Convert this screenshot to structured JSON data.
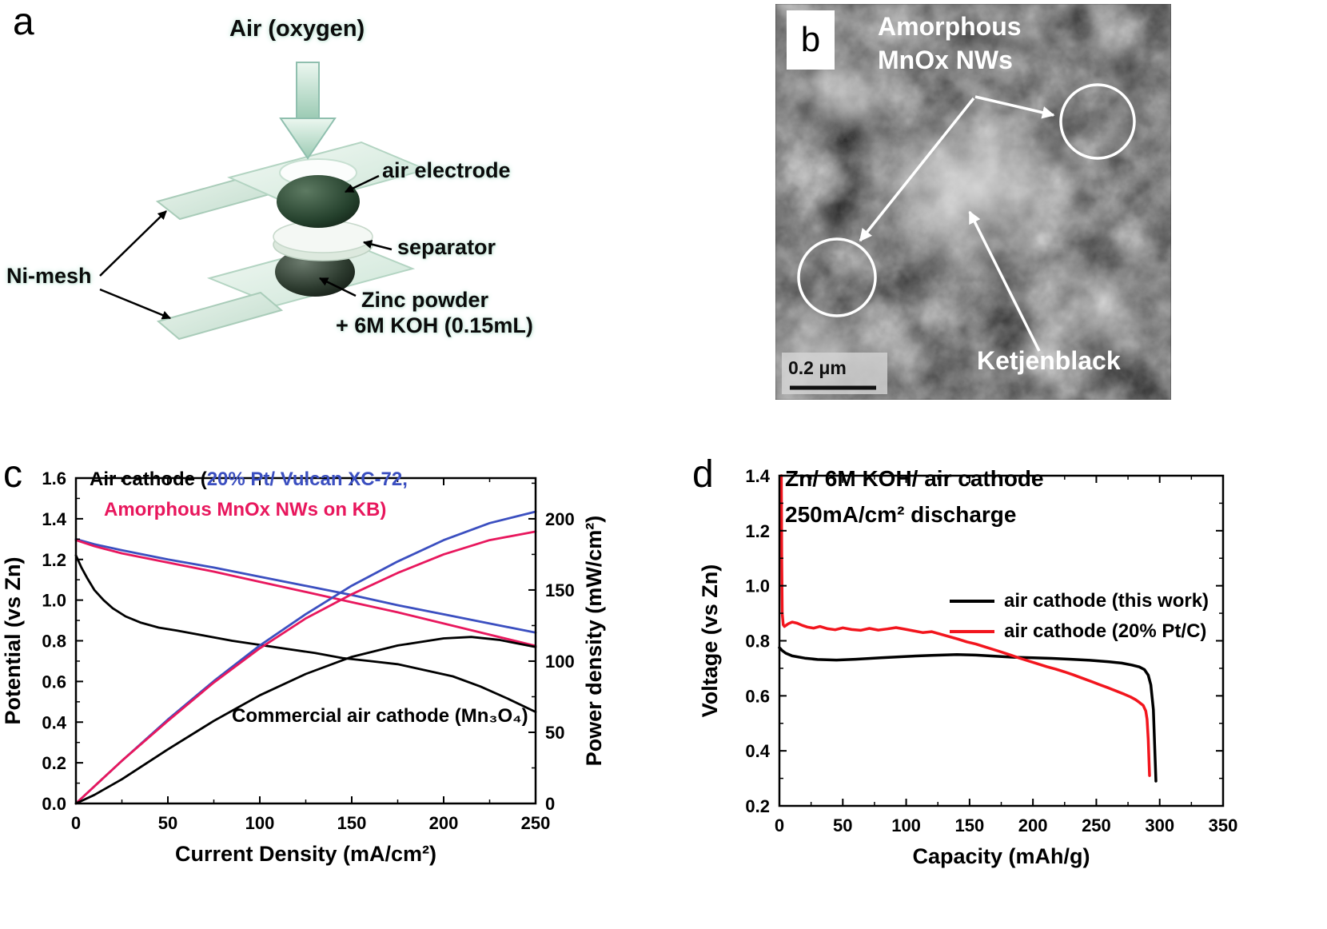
{
  "figure": {
    "panel_a_label": "a",
    "panel_b_label": "b",
    "panel_c_label": "c",
    "panel_d_label": "d"
  },
  "panel_a": {
    "air_oxygen": "Air (oxygen)",
    "air_electrode": "air electrode",
    "separator": "separator",
    "zinc_line1": "Zinc powder",
    "zinc_line2": "+ 6M KOH (0.15mL)",
    "ni_mesh": "Ni-mesh"
  },
  "panel_b": {
    "annotation_line1": "Amorphous",
    "annotation_line2": "MnOx NWs",
    "ketjenblack": "Ketjenblack",
    "scale_bar": "0.2 μm"
  },
  "panel_c": {
    "legend_black": "Air cathode (",
    "legend_blue": "20% Pt/ Vulcan XC-72,",
    "legend_red": "Amorphous MnOx NWs on KB)",
    "annotation": "Commercial air cathode (Mn₃O₄)",
    "colors": {
      "blue": "#3b4fc0",
      "red": "#e8175d",
      "black": "#000000"
    }
  },
  "panel_d": {
    "title_line1": "Zn/ 6M KOH/ air cathode",
    "title_line2": "250mA/cm² discharge",
    "legend": [
      {
        "label": "air cathode (this work)",
        "color": "#000000"
      },
      {
        "label": "air cathode (20% Pt/C)",
        "color": "#f2151d"
      }
    ]
  },
  "chart_data": [
    {
      "id": "chart-c",
      "type": "line",
      "xlabel": "Current Density (mA/cm²)",
      "ylabel_left": "Potential (vs Zn)",
      "ylabel_right": "Power density (mW/cm²)",
      "xlim": [
        0,
        250
      ],
      "ylim_left": [
        0,
        1.6
      ],
      "ylim_right": [
        0,
        228.6
      ],
      "xticks": [
        0,
        50,
        100,
        150,
        200,
        250
      ],
      "xminor": 25,
      "yticks_left": [
        "0.0",
        "0.2",
        "0.4",
        "0.6",
        "0.8",
        "1.0",
        "1.2",
        "1.4",
        "1.6"
      ],
      "yminor_left": 0.1,
      "yticks_right": [
        0,
        50,
        100,
        150,
        200
      ],
      "yminor_right": 25,
      "legend_position": "top-left",
      "grid": false,
      "series": [
        {
          "name": "commercial-Mn3O4-potential",
          "color": "#000000",
          "axis": "left",
          "width": 2.8,
          "x": [
            0,
            3,
            6,
            10,
            15,
            20,
            27,
            35,
            45,
            55,
            70,
            85,
            100,
            115,
            130,
            145,
            160,
            175,
            190,
            205,
            220,
            235,
            250
          ],
          "y": [
            1.22,
            1.16,
            1.11,
            1.05,
            1.0,
            0.96,
            0.92,
            0.89,
            0.865,
            0.85,
            0.825,
            0.8,
            0.78,
            0.76,
            0.74,
            0.715,
            0.7,
            0.685,
            0.655,
            0.625,
            0.575,
            0.515,
            0.45
          ]
        },
        {
          "name": "Pt-Vulcan-potential",
          "color": "#3b4fc0",
          "axis": "left",
          "width": 2.8,
          "x": [
            0,
            10,
            25,
            50,
            75,
            100,
            125,
            150,
            175,
            200,
            225,
            250
          ],
          "y": [
            1.3,
            1.275,
            1.245,
            1.2,
            1.16,
            1.115,
            1.07,
            1.025,
            0.975,
            0.93,
            0.885,
            0.84
          ]
        },
        {
          "name": "MnOx-NWs-potential",
          "color": "#e8175d",
          "axis": "left",
          "width": 2.8,
          "x": [
            0,
            10,
            25,
            50,
            75,
            100,
            125,
            150,
            175,
            200,
            225,
            250
          ],
          "y": [
            1.295,
            1.265,
            1.23,
            1.185,
            1.14,
            1.09,
            1.04,
            0.99,
            0.94,
            0.885,
            0.83,
            0.775
          ]
        },
        {
          "name": "Pt-Vulcan-power",
          "color": "#3b4fc0",
          "axis": "right",
          "width": 2.8,
          "x": [
            0,
            10,
            25,
            50,
            75,
            100,
            125,
            150,
            175,
            200,
            225,
            250
          ],
          "y": [
            0,
            12,
            30,
            59,
            86,
            111,
            133,
            153,
            170,
            185,
            197,
            205
          ]
        },
        {
          "name": "MnOx-NWs-power",
          "color": "#e8175d",
          "axis": "right",
          "width": 2.8,
          "x": [
            0,
            10,
            25,
            50,
            75,
            100,
            125,
            150,
            175,
            200,
            225,
            250
          ],
          "y": [
            0,
            12,
            30,
            58,
            85,
            109,
            130,
            147,
            162,
            175,
            185,
            191
          ]
        },
        {
          "name": "commercial-Mn3O4-power",
          "color": "#000000",
          "axis": "right",
          "width": 2.8,
          "x": [
            0,
            10,
            25,
            50,
            75,
            100,
            125,
            150,
            175,
            200,
            215,
            230,
            250
          ],
          "y": [
            0,
            6,
            17,
            38,
            58,
            76,
            91,
            103,
            111,
            116,
            117,
            115,
            110
          ]
        }
      ]
    },
    {
      "id": "chart-d",
      "type": "line",
      "xlabel": "Capacity (mAh/g)",
      "ylabel_left": "Voltage (vs Zn)",
      "xlim": [
        0,
        350
      ],
      "ylim_left": [
        0.2,
        1.4
      ],
      "xticks": [
        0,
        50,
        100,
        150,
        200,
        250,
        300,
        350
      ],
      "xminor": 25,
      "yticks_left": [
        "0.2",
        "0.4",
        "0.6",
        "0.8",
        "1.0",
        "1.2",
        "1.4"
      ],
      "yminor_left": 0.1,
      "legend_position": "center-right",
      "grid": false,
      "series": [
        {
          "name": "air-cathode-this-work",
          "color": "#000000",
          "axis": "left",
          "width": 3.5,
          "x": [
            0,
            2,
            5,
            10,
            20,
            30,
            45,
            60,
            80,
            100,
            120,
            140,
            155,
            170,
            185,
            200,
            215,
            230,
            245,
            260,
            270,
            278,
            284,
            288,
            291,
            293,
            295,
            296,
            297
          ],
          "y": [
            0.775,
            0.765,
            0.755,
            0.745,
            0.737,
            0.732,
            0.73,
            0.733,
            0.738,
            0.743,
            0.747,
            0.75,
            0.748,
            0.744,
            0.74,
            0.738,
            0.736,
            0.733,
            0.729,
            0.724,
            0.719,
            0.712,
            0.705,
            0.695,
            0.675,
            0.64,
            0.55,
            0.42,
            0.29
          ]
        },
        {
          "name": "air-cathode-20pct-PtC",
          "color": "#f2151d",
          "axis": "left",
          "width": 3.5,
          "x": [
            1.5,
            1.8,
            2.2,
            3,
            4,
            7,
            10,
            14,
            18,
            22,
            27,
            32,
            38,
            44,
            50,
            57,
            64,
            71,
            78,
            85,
            92,
            99,
            106,
            113,
            120,
            127,
            134,
            141,
            148,
            155,
            162,
            169,
            176,
            183,
            190,
            197,
            204,
            211,
            218,
            225,
            232,
            239,
            246,
            253,
            260,
            266,
            272,
            277,
            281,
            284,
            287,
            289,
            290,
            291,
            292
          ],
          "y": [
            1.4,
            1.1,
            0.9,
            0.858,
            0.852,
            0.862,
            0.868,
            0.864,
            0.856,
            0.85,
            0.846,
            0.852,
            0.844,
            0.84,
            0.847,
            0.841,
            0.838,
            0.845,
            0.839,
            0.843,
            0.848,
            0.842,
            0.836,
            0.83,
            0.833,
            0.824,
            0.815,
            0.806,
            0.796,
            0.788,
            0.778,
            0.768,
            0.758,
            0.747,
            0.736,
            0.726,
            0.716,
            0.706,
            0.697,
            0.687,
            0.676,
            0.664,
            0.652,
            0.64,
            0.628,
            0.617,
            0.606,
            0.596,
            0.586,
            0.576,
            0.565,
            0.545,
            0.515,
            0.44,
            0.31
          ]
        }
      ]
    }
  ]
}
